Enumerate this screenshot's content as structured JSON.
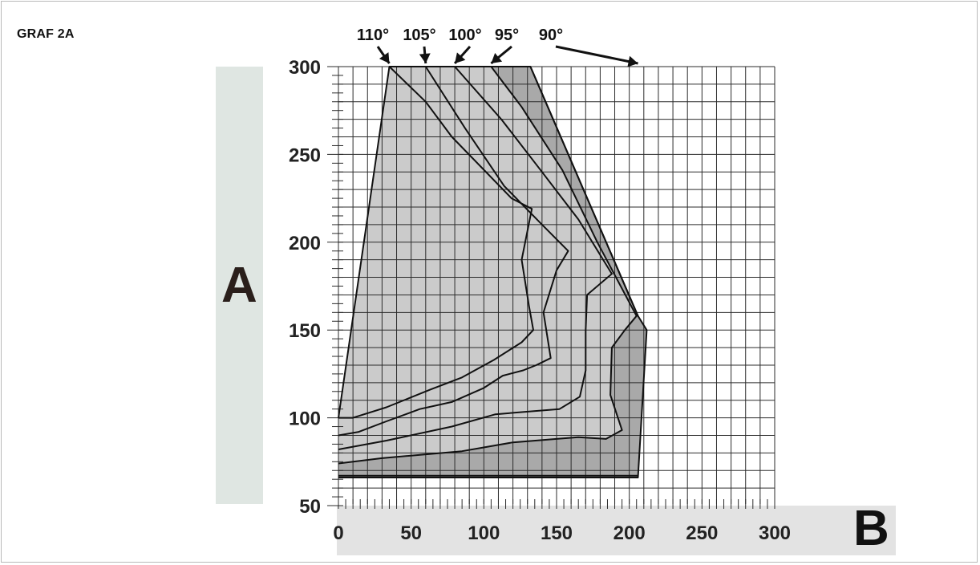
{
  "figure": {
    "title": "GRAF 2A",
    "axis_letter_y": "A",
    "axis_letter_x": "B"
  },
  "colors": {
    "outer_fill": "#a9a9a9",
    "inner_fill": "#cbcbcb",
    "line": "#111111",
    "grid": "#2b2b2b"
  },
  "chart_data": {
    "type": "area",
    "xlabel": "B",
    "ylabel": "A",
    "xlim": [
      0,
      300
    ],
    "ylim": [
      50,
      300
    ],
    "x_ticks": [
      0,
      50,
      100,
      150,
      200,
      250,
      300
    ],
    "y_ticks": [
      50,
      100,
      150,
      200,
      250,
      300
    ],
    "x_minor_step": 10,
    "y_minor_step": 5,
    "grid": true,
    "baseline_y": 67,
    "outer_boundary": [
      [
        0,
        100
      ],
      [
        35,
        300
      ],
      [
        132,
        300
      ],
      [
        206,
        158
      ],
      [
        212,
        150
      ],
      [
        206,
        66
      ],
      [
        0,
        66
      ]
    ],
    "series": [
      {
        "name": "110°",
        "values": [
          [
            0,
            100
          ],
          [
            10,
            100
          ],
          [
            33,
            106
          ],
          [
            63,
            116
          ],
          [
            85,
            123
          ],
          [
            107,
            133
          ],
          [
            126,
            143
          ],
          [
            134,
            150
          ],
          [
            131,
            164
          ],
          [
            126,
            190
          ],
          [
            133,
            219
          ],
          [
            119,
            225
          ],
          [
            78,
            260
          ],
          [
            60,
            280
          ],
          [
            35,
            300
          ]
        ]
      },
      {
        "name": "105°",
        "values": [
          [
            0,
            90
          ],
          [
            14,
            92
          ],
          [
            33,
            98
          ],
          [
            56,
            105
          ],
          [
            78,
            109
          ],
          [
            100,
            117
          ],
          [
            113,
            124
          ],
          [
            127,
            127
          ],
          [
            136,
            130
          ],
          [
            146,
            134
          ],
          [
            141,
            160
          ],
          [
            150,
            184
          ],
          [
            158,
            195
          ],
          [
            140,
            210
          ],
          [
            114,
            232
          ],
          [
            87,
            265
          ],
          [
            60,
            300
          ]
        ]
      },
      {
        "name": "100°",
        "values": [
          [
            0,
            82
          ],
          [
            33,
            87
          ],
          [
            78,
            95
          ],
          [
            108,
            102
          ],
          [
            138,
            104
          ],
          [
            152,
            105
          ],
          [
            166,
            112
          ],
          [
            170,
            127
          ],
          [
            170,
            150
          ],
          [
            171,
            170
          ],
          [
            188,
            182
          ],
          [
            165,
            213
          ],
          [
            140,
            240
          ],
          [
            112,
            270
          ],
          [
            80,
            300
          ]
        ]
      },
      {
        "name": "95°",
        "values": [
          [
            0,
            74
          ],
          [
            30,
            77
          ],
          [
            85,
            81
          ],
          [
            120,
            86
          ],
          [
            150,
            88
          ],
          [
            165,
            89
          ],
          [
            184,
            88
          ],
          [
            195,
            93
          ],
          [
            187,
            113
          ],
          [
            188,
            140
          ],
          [
            197,
            150
          ],
          [
            205,
            158
          ],
          [
            178,
            200
          ],
          [
            154,
            241
          ],
          [
            126,
            277
          ],
          [
            105,
            300
          ]
        ]
      },
      {
        "name": "90°",
        "values": [
          [
            132,
            300
          ],
          [
            206,
            158
          ]
        ]
      }
    ]
  }
}
